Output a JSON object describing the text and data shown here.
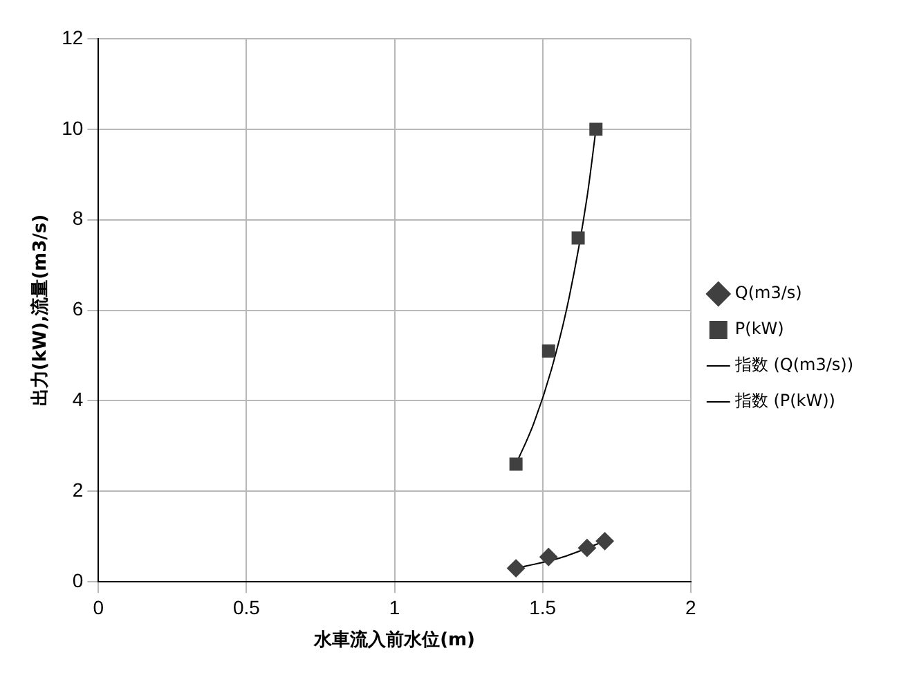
{
  "chart_data": {
    "type": "scatter",
    "xlabel": "水車流入前水位(m)",
    "ylabel": "出力(kW),流量(m3/s)",
    "xlim": [
      0,
      2
    ],
    "xticks": [
      0,
      0.5,
      1,
      1.5,
      2
    ],
    "ylim": [
      0,
      12
    ],
    "yticks": [
      0,
      2,
      4,
      6,
      8,
      10,
      12
    ],
    "grid": true,
    "legend": "right",
    "series": [
      {
        "name": "Q(m3/s)",
        "color": "#404040",
        "marker": "diamond",
        "x": [
          1.41,
          1.52,
          1.65,
          1.71
        ],
        "values": [
          0.3,
          0.55,
          0.75,
          0.9
        ]
      },
      {
        "name": "P(kW)",
        "color": "#404040",
        "marker": "square",
        "x": [
          1.41,
          1.52,
          1.62,
          1.68
        ],
        "values": [
          2.6,
          5.1,
          7.6,
          10.0
        ]
      },
      {
        "name": "指数 (Q(m3/s))",
        "type": "line",
        "color": "#000000",
        "marker": "none",
        "x": [
          1.41,
          1.56,
          1.71
        ],
        "values": [
          0.3,
          0.53,
          0.9
        ]
      },
      {
        "name": "指数 (P(kW))",
        "type": "line",
        "color": "#000000",
        "marker": "none",
        "x": [
          1.41,
          1.47,
          1.53,
          1.59,
          1.65,
          1.68
        ],
        "values": [
          2.6,
          3.5,
          4.7,
          6.3,
          8.5,
          10.0
        ]
      }
    ]
  }
}
